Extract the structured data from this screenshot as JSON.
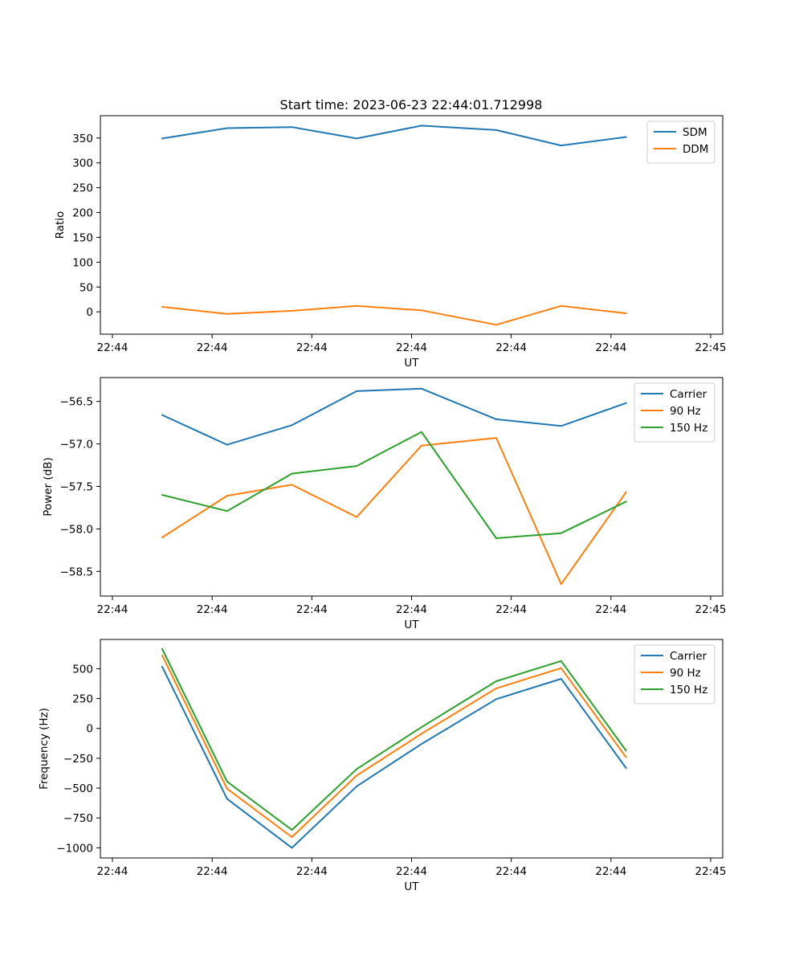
{
  "title": "Start time: 2023-06-23 22:44:01.712998",
  "colors": {
    "series1": "#1f77b4",
    "series2": "#ff7f0e",
    "series3": "#2ca02c"
  },
  "chart_data": [
    {
      "type": "line",
      "title": "Start time: 2023-06-23 22:44:01.712998",
      "xlabel": "UT",
      "ylabel": "Ratio",
      "x_tick_labels": [
        "22:44",
        "22:44",
        "22:44",
        "22:44",
        "22:44",
        "22:44",
        "22:45"
      ],
      "y_ticks": [
        0,
        50,
        100,
        150,
        200,
        250,
        300,
        350
      ],
      "xlim": [
        0,
        12
      ],
      "ylim": [
        -45,
        395
      ],
      "legend_position": "top-right",
      "grid": false,
      "x": [
        1,
        2.3,
        3.6,
        4.9,
        6.2,
        7.7,
        9.0,
        10.3
      ],
      "series": [
        {
          "name": "SDM",
          "color": "#1f77b4",
          "values": [
            349,
            370,
            372,
            349,
            375,
            366,
            335,
            352
          ]
        },
        {
          "name": "DDM",
          "color": "#ff7f0e",
          "values": [
            10,
            -4,
            2,
            12,
            3,
            -26,
            12,
            -3
          ]
        }
      ]
    },
    {
      "type": "line",
      "title": "",
      "xlabel": "UT",
      "ylabel": "Power (dB)",
      "x_tick_labels": [
        "22:44",
        "22:44",
        "22:44",
        "22:44",
        "22:44",
        "22:44",
        "22:45"
      ],
      "y_ticks": [
        -58.5,
        -58.0,
        -57.5,
        -57.0,
        -56.5
      ],
      "y_tick_labels": [
        "−58.5",
        "−58.0",
        "−57.5",
        "−57.0",
        "−56.5"
      ],
      "xlim": [
        0,
        12
      ],
      "ylim": [
        -58.79,
        -56.22
      ],
      "legend_position": "top-right",
      "grid": false,
      "x": [
        1,
        2.3,
        3.6,
        4.9,
        6.2,
        7.7,
        9.0,
        10.3
      ],
      "series": [
        {
          "name": "Carrier",
          "color": "#1f77b4",
          "values": [
            -56.66,
            -57.01,
            -56.78,
            -56.38,
            -56.35,
            -56.71,
            -56.79,
            -56.52
          ]
        },
        {
          "name": "90 Hz",
          "color": "#ff7f0e",
          "values": [
            -58.1,
            -57.61,
            -57.48,
            -57.86,
            -57.02,
            -56.93,
            -58.65,
            -57.57
          ]
        },
        {
          "name": "150 Hz",
          "color": "#2ca02c",
          "values": [
            -57.6,
            -57.79,
            -57.35,
            -57.26,
            -56.86,
            -58.11,
            -58.05,
            -57.68
          ]
        }
      ]
    },
    {
      "type": "line",
      "title": "",
      "xlabel": "UT",
      "ylabel": "Frequency (Hz)",
      "x_tick_labels": [
        "22:44",
        "22:44",
        "22:44",
        "22:44",
        "22:44",
        "22:44",
        "22:45"
      ],
      "y_ticks": [
        -1000,
        -750,
        -500,
        -250,
        0,
        250,
        500
      ],
      "y_tick_labels": [
        "−1000",
        "−750",
        "−500",
        "−250",
        "0",
        "250",
        "500"
      ],
      "xlim": [
        0,
        12
      ],
      "ylim": [
        -1085,
        745
      ],
      "legend_position": "top-right",
      "grid": false,
      "x": [
        1,
        2.3,
        3.6,
        4.9,
        6.2,
        7.7,
        9.0,
        10.3
      ],
      "series": [
        {
          "name": "Carrier",
          "color": "#1f77b4",
          "values": [
            515,
            -590,
            -1000,
            -485,
            -130,
            245,
            415,
            -330
          ]
        },
        {
          "name": "90 Hz",
          "color": "#ff7f0e",
          "values": [
            610,
            -505,
            -910,
            -395,
            -45,
            335,
            505,
            -240
          ]
        },
        {
          "name": "150 Hz",
          "color": "#2ca02c",
          "values": [
            665,
            -445,
            -850,
            -340,
            10,
            395,
            565,
            -185
          ]
        }
      ]
    }
  ]
}
